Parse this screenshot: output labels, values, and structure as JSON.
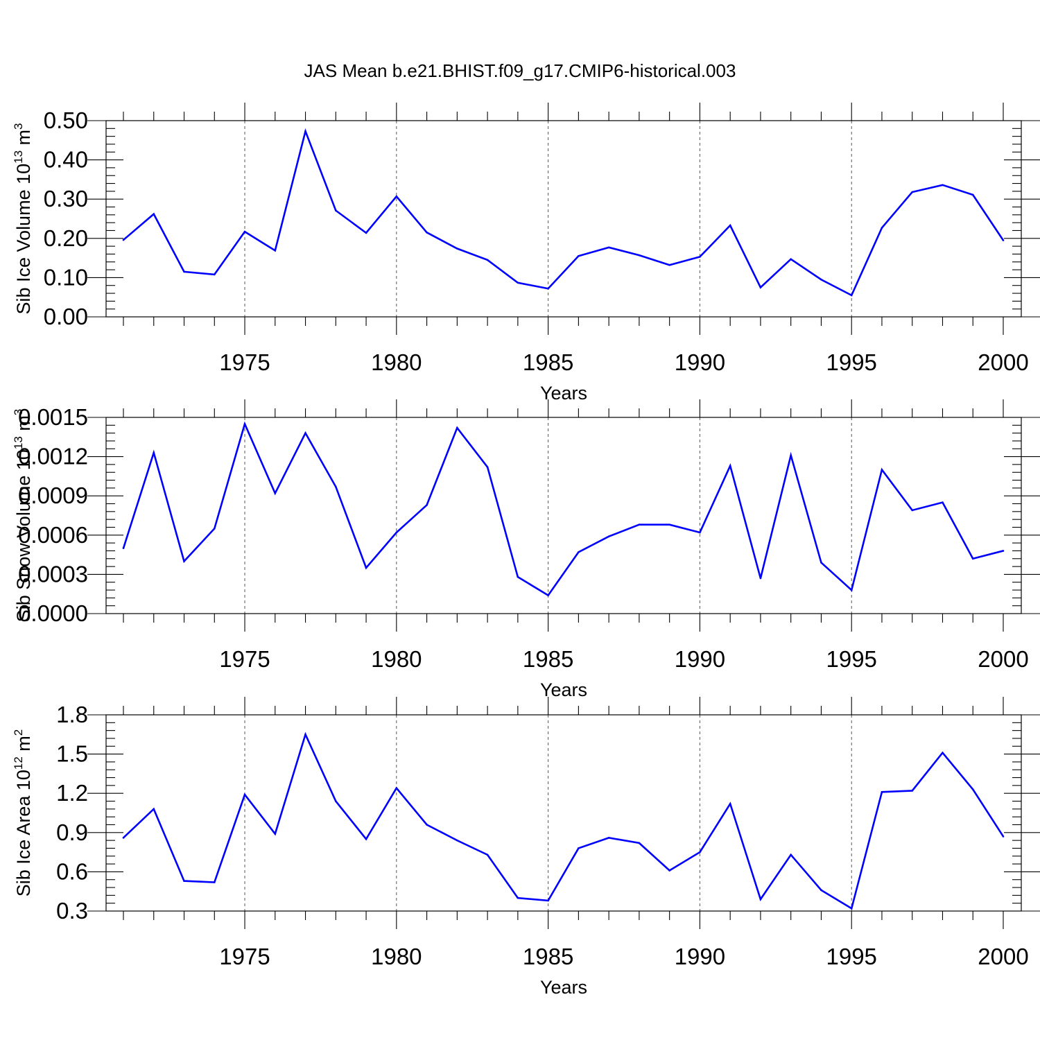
{
  "title": "JAS Mean b.e21.BHIST.f09_g17.CMIP6-historical.003",
  "colors": {
    "series": "#0000ff",
    "axes": "#000000",
    "grid": "#555555",
    "background": "#ffffff"
  },
  "chart_data": [
    {
      "type": "line",
      "title": "JAS Mean b.e21.BHIST.f09_g17.CMIP6-historical.003",
      "xlabel": "Years",
      "ylabel": "Sib Ice Volume 10",
      "ylabel_exp": "13",
      "ylabel_unit": " m",
      "ylabel_unit_exp": "3",
      "xlim": [
        1971,
        2000
      ],
      "ylim": [
        0,
        0.5
      ],
      "yticks": [
        0,
        0.1,
        0.2,
        0.3,
        0.4,
        0.5
      ],
      "ytick_labels": [
        "0.00",
        "0.10",
        "0.20",
        "0.30",
        "0.40",
        "0.50"
      ],
      "xticks": [
        1975,
        1980,
        1985,
        1990,
        1995,
        2000
      ],
      "xtick_labels": [
        "1975",
        "1980",
        "1985",
        "1990",
        "1995",
        "2000"
      ],
      "grid": "vertical dashed at major x ticks",
      "x": [
        1971,
        1972,
        1973,
        1974,
        1975,
        1976,
        1977,
        1978,
        1979,
        1980,
        1981,
        1982,
        1983,
        1984,
        1985,
        1986,
        1987,
        1988,
        1989,
        1990,
        1991,
        1992,
        1993,
        1994,
        1995,
        1996,
        1997,
        1998,
        1999,
        2000
      ],
      "series": [
        {
          "name": "Sib Ice Volume",
          "values": [
            0.196,
            0.262,
            0.115,
            0.108,
            0.217,
            0.169,
            0.473,
            0.271,
            0.214,
            0.307,
            0.215,
            0.174,
            0.145,
            0.087,
            0.072,
            0.155,
            0.177,
            0.157,
            0.132,
            0.153,
            0.233,
            0.075,
            0.147,
            0.095,
            0.055,
            0.227,
            0.318,
            0.336,
            0.311,
            0.195
          ]
        }
      ]
    },
    {
      "type": "line",
      "xlabel": "Years",
      "ylabel": "Sib Snow Volume 10",
      "ylabel_exp": "13",
      "ylabel_unit": " m",
      "ylabel_unit_exp": "3",
      "xlim": [
        1971,
        2000
      ],
      "ylim": [
        0,
        0.0015
      ],
      "yticks": [
        0,
        0.0003,
        0.0006,
        0.0009,
        0.0012,
        0.0015
      ],
      "ytick_labels": [
        "0.0000",
        "0.0003",
        "0.0006",
        "0.0009",
        "0.0012",
        "0.0015"
      ],
      "xticks": [
        1975,
        1980,
        1985,
        1990,
        1995,
        2000
      ],
      "xtick_labels": [
        "1975",
        "1980",
        "1985",
        "1990",
        "1995",
        "2000"
      ],
      "grid": "vertical dashed at major x ticks",
      "x": [
        1971,
        1972,
        1973,
        1974,
        1975,
        1976,
        1977,
        1978,
        1979,
        1980,
        1981,
        1982,
        1983,
        1984,
        1985,
        1986,
        1987,
        1988,
        1989,
        1990,
        1991,
        1992,
        1993,
        1994,
        1995,
        1996,
        1997,
        1998,
        1999,
        2000
      ],
      "series": [
        {
          "name": "Sib Snow Volume",
          "values": [
            0.0005,
            0.00123,
            0.0004,
            0.00065,
            0.00145,
            0.00092,
            0.00138,
            0.00097,
            0.00035,
            0.00062,
            0.00083,
            0.00142,
            0.00112,
            0.00028,
            0.00014,
            0.00047,
            0.00059,
            0.00068,
            0.00068,
            0.00062,
            0.00113,
            0.00027,
            0.00121,
            0.00039,
            0.00018,
            0.0011,
            0.00079,
            0.00085,
            0.00042,
            0.00048
          ]
        }
      ]
    },
    {
      "type": "line",
      "xlabel": "Years",
      "ylabel": "Sib Ice Area 10",
      "ylabel_exp": "12",
      "ylabel_unit": " m",
      "ylabel_unit_exp": "2",
      "xlim": [
        1971,
        2000
      ],
      "ylim": [
        0.3,
        1.8
      ],
      "yticks": [
        0.3,
        0.6,
        0.9,
        1.2,
        1.5,
        1.8
      ],
      "ytick_labels": [
        "0.3",
        "0.6",
        "0.9",
        "1.2",
        "1.5",
        "1.8"
      ],
      "xticks": [
        1975,
        1980,
        1985,
        1990,
        1995,
        2000
      ],
      "xtick_labels": [
        "1975",
        "1980",
        "1985",
        "1990",
        "1995",
        "2000"
      ],
      "grid": "vertical dashed at major x ticks",
      "x": [
        1971,
        1972,
        1973,
        1974,
        1975,
        1976,
        1977,
        1978,
        1979,
        1980,
        1981,
        1982,
        1983,
        1984,
        1985,
        1986,
        1987,
        1988,
        1989,
        1990,
        1991,
        1992,
        1993,
        1994,
        1995,
        1996,
        1997,
        1998,
        1999,
        2000
      ],
      "series": [
        {
          "name": "Sib Ice Area",
          "values": [
            0.86,
            1.08,
            0.53,
            0.52,
            1.19,
            0.89,
            1.65,
            1.14,
            0.85,
            1.24,
            0.96,
            0.84,
            0.73,
            0.4,
            0.38,
            0.78,
            0.86,
            0.82,
            0.61,
            0.75,
            1.12,
            0.39,
            0.73,
            0.46,
            0.32,
            1.21,
            1.22,
            1.51,
            1.23,
            0.87
          ]
        }
      ]
    }
  ]
}
